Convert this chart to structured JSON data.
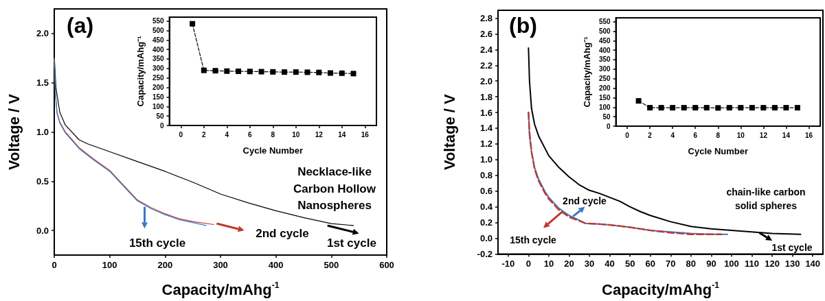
{
  "chart_data": [
    {
      "type": "line",
      "title": "(a)",
      "xlabel": "Capacity/mAhg$^{-1}$",
      "ylabel": "Voltage / V",
      "xlim": [
        0,
        600
      ],
      "xticks": [
        0,
        100,
        200,
        300,
        400,
        500,
        600
      ],
      "ylim": [
        -0.25,
        2.25
      ],
      "yticks": [
        {
          "value": 0,
          "label": "0.0"
        },
        0.5,
        {
          "value": 1,
          "label": "1.0"
        },
        1.5,
        {
          "value": 2,
          "label": "2.0"
        }
      ],
      "marker": "none",
      "line_style": "solid",
      "series": [
        {
          "color": "#000000",
          "x": [
            0,
            3,
            10,
            20,
            45,
            60,
            100,
            150,
            200,
            250,
            300,
            350,
            400,
            450,
            500,
            540
          ],
          "values": [
            1.78,
            1.45,
            1.2,
            1.07,
            0.92,
            0.88,
            0.8,
            0.7,
            0.6,
            0.49,
            0.37,
            0.28,
            0.2,
            0.13,
            0.07,
            0.05
          ]
        },
        {
          "color": "#c0392b",
          "x": [
            0,
            2,
            5,
            10,
            20,
            45,
            70,
            100,
            125,
            150,
            175,
            200,
            225,
            250,
            288
          ],
          "values": [
            1.75,
            1.4,
            1.2,
            1.1,
            1.0,
            0.84,
            0.73,
            0.61,
            0.46,
            0.31,
            0.23,
            0.17,
            0.12,
            0.09,
            0.06
          ]
        },
        {
          "color": "#3a78c9",
          "x": [
            0,
            2,
            5,
            10,
            20,
            45,
            70,
            100,
            125,
            150,
            175,
            200,
            225,
            250,
            274
          ],
          "values": [
            1.74,
            1.39,
            1.19,
            1.09,
            0.99,
            0.83,
            0.72,
            0.6,
            0.45,
            0.3,
            0.22,
            0.16,
            0.11,
            0.08,
            0.05
          ]
        }
      ],
      "annotations": [
        "15th cycle",
        "2nd cycle",
        "1st cycle",
        "Necklace-like\nCarbon Hollow\nNanospheres"
      ]
    },
    {
      "type": "line",
      "xlabel": "Cycle Number",
      "ylabel": "Capacity/mAhg⁻¹",
      "xlim": [
        -1,
        17
      ],
      "xticks": [
        0,
        2,
        4,
        6,
        8,
        10,
        12,
        14,
        16
      ],
      "ylim": [
        0,
        570
      ],
      "yticks": [
        0,
        50,
        100,
        150,
        200,
        250,
        300,
        350,
        400,
        450,
        500,
        550
      ],
      "marker": "square",
      "line_style": "dashed",
      "series": [
        {
          "color": "#000000",
          "x": [
            1,
            2,
            3,
            4,
            5,
            6,
            7,
            8,
            9,
            10,
            11,
            12,
            13,
            14,
            15
          ],
          "values": [
            535,
            290,
            288,
            286,
            285,
            284,
            283,
            282,
            281,
            281,
            280,
            279,
            276,
            275,
            273
          ]
        }
      ]
    },
    {
      "type": "line",
      "title": "(b)",
      "xlabel": "Capacity/mAhg$^{-1}$",
      "ylabel": "Voltage / V",
      "xlim": [
        -15,
        145
      ],
      "xticks": [
        -10,
        0,
        10,
        20,
        30,
        40,
        50,
        60,
        70,
        80,
        90,
        100,
        110,
        120,
        130,
        140
      ],
      "ylim": [
        -0.2,
        2.9
      ],
      "yticks": [
        -0.2,
        {
          "value": 0,
          "label": "0.0"
        },
        0.2,
        0.4,
        0.6,
        0.8,
        {
          "value": 1,
          "label": "1.0"
        },
        1.2,
        1.4,
        1.6,
        1.8,
        {
          "value": 2,
          "label": "2.0"
        },
        2.2,
        2.4,
        2.6,
        2.8
      ],
      "marker": "none",
      "line_style": "solid",
      "series": [
        {
          "color": "#000000",
          "x": [
            0,
            0.5,
            1.5,
            3,
            5,
            10,
            15,
            20,
            25,
            30,
            35,
            40,
            45,
            50,
            55,
            60,
            70,
            80,
            90,
            100,
            110,
            120,
            134
          ],
          "values": [
            2.42,
            2.0,
            1.65,
            1.45,
            1.3,
            1.05,
            0.9,
            0.78,
            0.68,
            0.61,
            0.57,
            0.52,
            0.47,
            0.4,
            0.34,
            0.29,
            0.21,
            0.15,
            0.12,
            0.1,
            0.08,
            0.06,
            0.05
          ]
        },
        {
          "color": "#3a78c9",
          "x": [
            0,
            0.5,
            1.5,
            3,
            5,
            8,
            10,
            15,
            20,
            25,
            28,
            35,
            40,
            50,
            60,
            70,
            80,
            90,
            98
          ],
          "values": [
            1.6,
            1.3,
            1.1,
            0.9,
            0.75,
            0.6,
            0.52,
            0.38,
            0.29,
            0.23,
            0.19,
            0.18,
            0.17,
            0.14,
            0.1,
            0.08,
            0.06,
            0.05,
            0.05
          ]
        },
        {
          "color": "#c0392b",
          "line_style": "dashed",
          "x": [
            0,
            0.5,
            1.5,
            3,
            5,
            8,
            10,
            15,
            20,
            25,
            28,
            35,
            40,
            50,
            60,
            70,
            80,
            95
          ],
          "values": [
            1.6,
            1.35,
            1.1,
            0.88,
            0.73,
            0.58,
            0.5,
            0.36,
            0.27,
            0.22,
            0.19,
            0.18,
            0.17,
            0.14,
            0.1,
            0.07,
            0.05,
            0.05
          ]
        }
      ],
      "annotations": [
        "2nd cycle",
        "15th cycle",
        "1st cycle",
        "chain-like carbon\nsolid spheres"
      ]
    },
    {
      "type": "line",
      "xlabel": "Cycle Number",
      "ylabel": "Capacity/mAhg⁻¹",
      "xlim": [
        -1,
        17
      ],
      "xticks": [
        0,
        2,
        4,
        6,
        8,
        10,
        12,
        14,
        16
      ],
      "ylim": [
        0,
        570
      ],
      "yticks": [
        0,
        50,
        100,
        150,
        200,
        250,
        300,
        350,
        400,
        450,
        500,
        550
      ],
      "marker": "square",
      "line_style": "dashed",
      "series": [
        {
          "color": "#000000",
          "x": [
            1,
            2,
            3,
            4,
            5,
            6,
            7,
            8,
            9,
            10,
            11,
            12,
            13,
            14,
            15
          ],
          "values": [
            133,
            97,
            97,
            97,
            97,
            97,
            97,
            96,
            97,
            97,
            97,
            97,
            97,
            97,
            97
          ]
        }
      ]
    }
  ]
}
